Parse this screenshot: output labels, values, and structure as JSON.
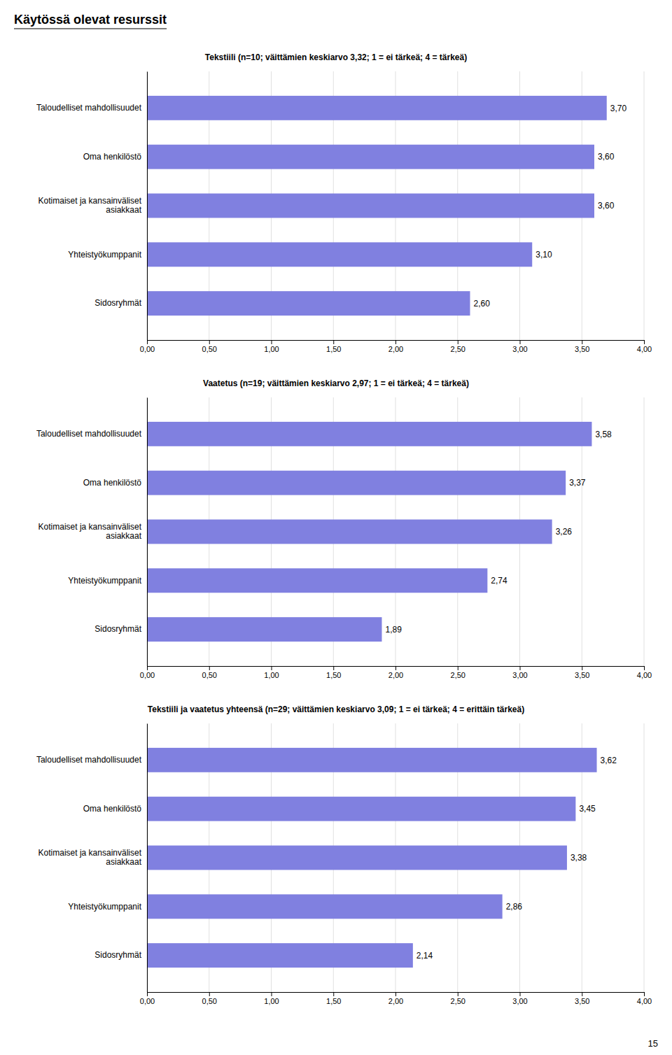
{
  "title": "Käytössä olevat resurssit",
  "annotations": [
    {
      "text": "15"
    }
  ],
  "chart_data": [
    {
      "type": "bar",
      "orientation": "horizontal",
      "title": "Tekstiili (n=10; väittämien keskiarvo 3,32; 1 = ei tärkeä; 4 = tärkeä)",
      "categories": [
        "Taloudelliset mahdollisuudet",
        "Oma henkilöstö",
        "Kotimaiset ja kansainväliset\nasiakkaat",
        "Yhteistyökumppanit",
        "Sidosryhmät"
      ],
      "values": [
        3.7,
        3.6,
        3.6,
        3.1,
        2.6
      ],
      "value_labels": [
        "3,70",
        "3,60",
        "3,60",
        "3,10",
        "2,60"
      ],
      "data_labels": true,
      "color": "#8080e0",
      "xlim": [
        0,
        4.0
      ],
      "xticks": [
        {
          "value": 0.0,
          "label": "0,00"
        },
        {
          "value": 0.5,
          "label": "0,50"
        },
        {
          "value": 1.0,
          "label": "1,00"
        },
        {
          "value": 1.5,
          "label": "1,50"
        },
        {
          "value": 2.0,
          "label": "2,00"
        },
        {
          "value": 2.5,
          "label": "2,50"
        },
        {
          "value": 3.0,
          "label": "3,00"
        },
        {
          "value": 3.5,
          "label": "3,50"
        },
        {
          "value": 4.0,
          "label": "4,00"
        }
      ],
      "grid": true
    },
    {
      "type": "bar",
      "orientation": "horizontal",
      "title": "Vaatetus (n=19; väittämien keskiarvo 2,97; 1 = ei tärkeä; 4 = tärkeä)",
      "categories": [
        "Taloudelliset mahdollisuudet",
        "Oma henkilöstö",
        "Kotimaiset ja kansainväliset\nasiakkaat",
        "Yhteistyökumppanit",
        "Sidosryhmät"
      ],
      "values": [
        3.58,
        3.37,
        3.26,
        2.74,
        1.89
      ],
      "value_labels": [
        "3,58",
        "3,37",
        "3,26",
        "2,74",
        "1,89"
      ],
      "data_labels": true,
      "color": "#8080e0",
      "xlim": [
        0,
        4.0
      ],
      "xticks": [
        {
          "value": 0.0,
          "label": "0,00"
        },
        {
          "value": 0.5,
          "label": "0,50"
        },
        {
          "value": 1.0,
          "label": "1,00"
        },
        {
          "value": 1.5,
          "label": "1,50"
        },
        {
          "value": 2.0,
          "label": "2,00"
        },
        {
          "value": 2.5,
          "label": "2,50"
        },
        {
          "value": 3.0,
          "label": "3,00"
        },
        {
          "value": 3.5,
          "label": "3,50"
        },
        {
          "value": 4.0,
          "label": "4,00"
        }
      ],
      "grid": true
    },
    {
      "type": "bar",
      "orientation": "horizontal",
      "title": "Tekstiili ja vaatetus yhteensä (n=29; väittämien keskiarvo 3,09; 1 = ei tärkeä; 4 = erittäin tärkeä)",
      "categories": [
        "Taloudelliset mahdollisuudet",
        "Oma henkilöstö",
        "Kotimaiset ja kansainväliset\nasiakkaat",
        "Yhteistyökumppanit",
        "Sidosryhmät"
      ],
      "values": [
        3.62,
        3.45,
        3.38,
        2.86,
        2.14
      ],
      "value_labels": [
        "3,62",
        "3,45",
        "3,38",
        "2,86",
        "2,14"
      ],
      "data_labels": true,
      "color": "#8080e0",
      "xlim": [
        0,
        4.0
      ],
      "xticks": [
        {
          "value": 0.0,
          "label": "0,00"
        },
        {
          "value": 0.5,
          "label": "0,50"
        },
        {
          "value": 1.0,
          "label": "1,00"
        },
        {
          "value": 1.5,
          "label": "1,50"
        },
        {
          "value": 2.0,
          "label": "2,00"
        },
        {
          "value": 2.5,
          "label": "2,50"
        },
        {
          "value": 3.0,
          "label": "3,00"
        },
        {
          "value": 3.5,
          "label": "3,50"
        },
        {
          "value": 4.0,
          "label": "4,00"
        }
      ],
      "grid": true
    }
  ]
}
